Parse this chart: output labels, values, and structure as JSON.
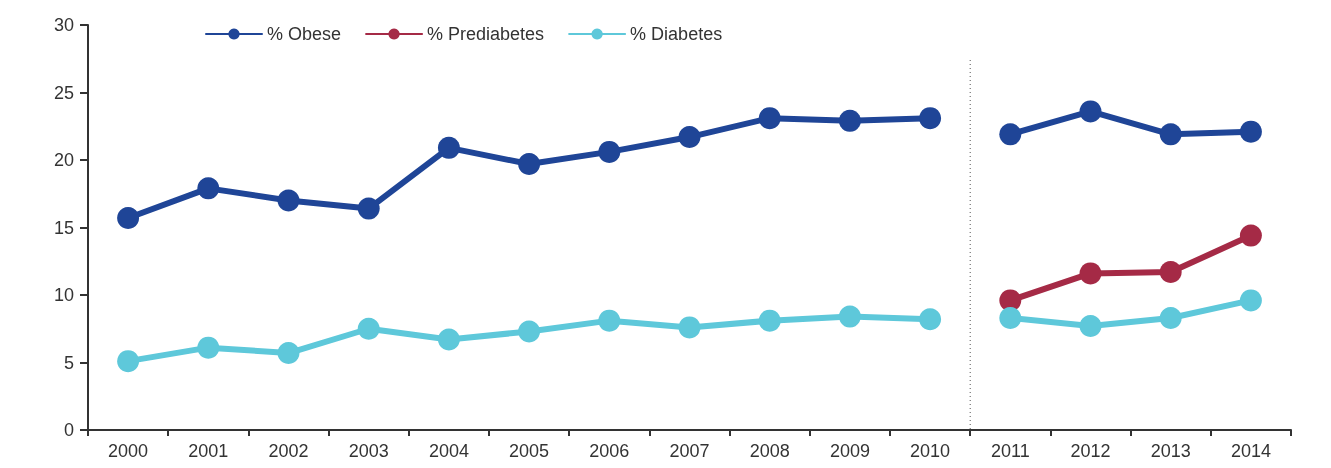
{
  "chart_data": {
    "type": "line",
    "categories": [
      "2000",
      "2001",
      "2002",
      "2003",
      "2004",
      "2005",
      "2006",
      "2007",
      "2008",
      "2009",
      "2010",
      "2011",
      "2012",
      "2013",
      "2014"
    ],
    "series": [
      {
        "name": "% Obese",
        "color": "#1f4597",
        "values": [
          15.7,
          17.9,
          17.0,
          16.4,
          20.9,
          19.7,
          20.6,
          21.7,
          23.1,
          22.9,
          23.1,
          null,
          null,
          null,
          null
        ]
      },
      {
        "name": "% Prediabetes",
        "color": "#a52a46",
        "values": [
          null,
          null,
          null,
          null,
          null,
          null,
          null,
          null,
          null,
          null,
          null,
          9.6,
          11.6,
          11.7,
          14.4
        ]
      },
      {
        "name": "% Diabetes",
        "color": "#5ec8da",
        "values": [
          5.1,
          6.1,
          5.7,
          7.5,
          6.7,
          7.3,
          8.1,
          7.6,
          8.1,
          8.4,
          8.2,
          null,
          null,
          null,
          null
        ]
      },
      {
        "color": "#1f4597",
        "values": [
          null,
          null,
          null,
          null,
          null,
          null,
          null,
          null,
          null,
          null,
          null,
          21.9,
          23.6,
          21.9,
          22.1
        ]
      },
      {
        "color": "#5ec8da",
        "values": [
          null,
          null,
          null,
          null,
          null,
          null,
          null,
          null,
          null,
          null,
          null,
          8.3,
          7.7,
          8.3,
          9.6
        ]
      }
    ],
    "ylim": [
      0,
      30
    ],
    "yticks": [
      0,
      5,
      10,
      15,
      20,
      25,
      30
    ],
    "grid": false,
    "legend": "top left",
    "marker": "circle",
    "line_style": "solid"
  }
}
